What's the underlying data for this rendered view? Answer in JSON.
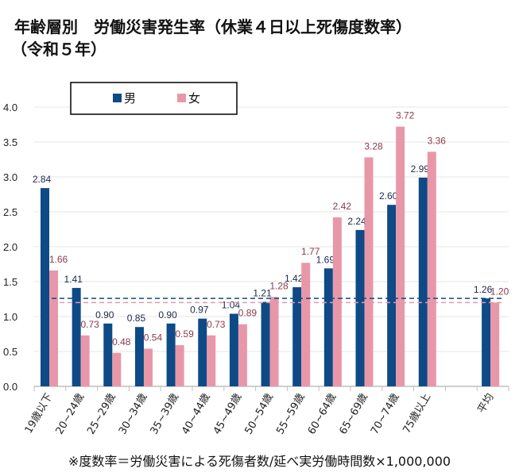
{
  "title_line1": "年齢層別　労働災害発生率（休業４日以上死傷度数率）",
  "title_line2": "（令和５年）",
  "footnote": "※度数率＝労働災害による死傷者数/延べ実労働時間数×1,000,000",
  "chart_data": {
    "type": "bar",
    "title": "年齢層別　労働災害発生率（休業４日以上死傷度数率）（令和５年）",
    "xlabel": "",
    "ylabel": "",
    "ylim": [
      0,
      4.0
    ],
    "yticks": [
      "0.0",
      "0.5",
      "1.0",
      "1.5",
      "2.0",
      "2.5",
      "3.0",
      "3.5",
      "4.0"
    ],
    "legend_position": "top-left",
    "categories": [
      "19歳以下",
      "20~24歳",
      "25~29歳",
      "30~34歳",
      "35~39歳",
      "40~44歳",
      "45~49歳",
      "50~54歳",
      "55~59歳",
      "60~64歳",
      "65~69歳",
      "70~74歳",
      "75歳以上",
      "平均"
    ],
    "series": [
      {
        "name": "男",
        "color": "#0e4a86",
        "label_color": "#1a2a4a",
        "values": [
          2.84,
          1.41,
          0.9,
          0.85,
          0.9,
          0.97,
          1.04,
          1.21,
          1.42,
          1.69,
          2.24,
          2.6,
          2.99,
          1.26
        ],
        "labels": [
          "2.84",
          "1.41",
          "0.90",
          "0.85",
          "0.90",
          "0.97",
          "1.04",
          "1.21",
          "1.42",
          "1.69",
          "2.24",
          "2.60",
          "2.99",
          "1.26"
        ]
      },
      {
        "name": "女",
        "color": "#e897a9",
        "label_color": "#8a3a4c",
        "values": [
          1.66,
          0.73,
          0.48,
          0.54,
          0.59,
          0.73,
          0.89,
          1.28,
          1.77,
          2.42,
          3.28,
          3.72,
          3.36,
          1.2
        ],
        "labels": [
          "1.66",
          "0.73",
          "0.48",
          "0.54",
          "0.59",
          "0.73",
          "0.89",
          "1.28",
          "1.77",
          "2.42",
          "3.28",
          "3.72",
          "3.36",
          "1.20"
        ]
      }
    ],
    "reference_lines": [
      {
        "series": "男",
        "value": 1.26,
        "style": "dashed"
      },
      {
        "series": "女",
        "value": 1.2,
        "style": "dashed"
      }
    ]
  }
}
